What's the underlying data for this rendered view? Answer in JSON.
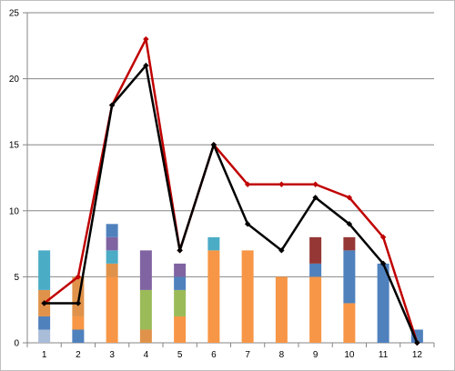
{
  "chart_data": {
    "type": "bar",
    "combo": "stacked-bar-with-lines",
    "title": "",
    "xlabel": "",
    "ylabel": "",
    "ylim": [
      0,
      25
    ],
    "yticks": [
      0,
      5,
      10,
      15,
      20,
      25
    ],
    "grid": "horizontal",
    "legend": "none",
    "categories": [
      "1",
      "2",
      "3",
      "4",
      "5",
      "6",
      "7",
      "8",
      "9",
      "10",
      "11",
      "12"
    ],
    "stacked_series": [
      {
        "color": "#a9bcd8",
        "values": [
          1,
          0,
          0,
          0,
          0,
          0,
          0,
          0,
          0,
          0,
          0,
          0
        ]
      },
      {
        "color": "#4f81bd",
        "values": [
          1,
          1,
          0,
          0,
          0,
          0,
          0,
          0,
          0,
          0,
          6,
          1
        ]
      },
      {
        "color": "#f79646",
        "values": [
          0,
          1,
          5,
          0,
          2,
          7,
          7,
          5,
          5,
          3,
          0,
          0
        ]
      },
      {
        "color": "#4f81bd",
        "values": [
          0,
          0,
          0,
          0,
          0,
          0,
          0,
          0,
          1,
          4,
          0,
          0
        ]
      },
      {
        "color": "#e0924a",
        "values": [
          2,
          3,
          1,
          1,
          0,
          0,
          0,
          0,
          0,
          0,
          0,
          0
        ]
      },
      {
        "color": "#9bbb59",
        "values": [
          0,
          0,
          0,
          3,
          2,
          0,
          0,
          0,
          0,
          0,
          0,
          0
        ]
      },
      {
        "color": "#4bacc6",
        "values": [
          3,
          0,
          1,
          0,
          0,
          1,
          0,
          0,
          0,
          0,
          0,
          0
        ]
      },
      {
        "color": "#4f81bd",
        "values": [
          0,
          0,
          0,
          0,
          1,
          0,
          0,
          0,
          0,
          0,
          0,
          0
        ]
      },
      {
        "color": "#8064a2",
        "values": [
          0,
          0,
          1,
          3,
          1,
          0,
          0,
          0,
          0,
          0,
          0,
          0
        ]
      },
      {
        "color": "#4f81bd",
        "values": [
          0,
          0,
          1,
          0,
          0,
          0,
          0,
          0,
          0,
          0,
          0,
          0
        ]
      },
      {
        "color": "#953735",
        "values": [
          0,
          0,
          0,
          0,
          0,
          0,
          0,
          0,
          2,
          1,
          0,
          0
        ]
      }
    ],
    "series": [
      {
        "type": "line",
        "color": "#c00000",
        "values": [
          3,
          5,
          18,
          23,
          7,
          15,
          12,
          12,
          12,
          11,
          8,
          0
        ]
      },
      {
        "type": "line",
        "color": "#000000",
        "values": [
          3,
          3,
          18,
          21,
          7,
          15,
          9,
          7,
          11,
          9,
          6,
          0
        ]
      }
    ]
  },
  "colors": {
    "gridline": "#868686",
    "axis": "#868686"
  }
}
